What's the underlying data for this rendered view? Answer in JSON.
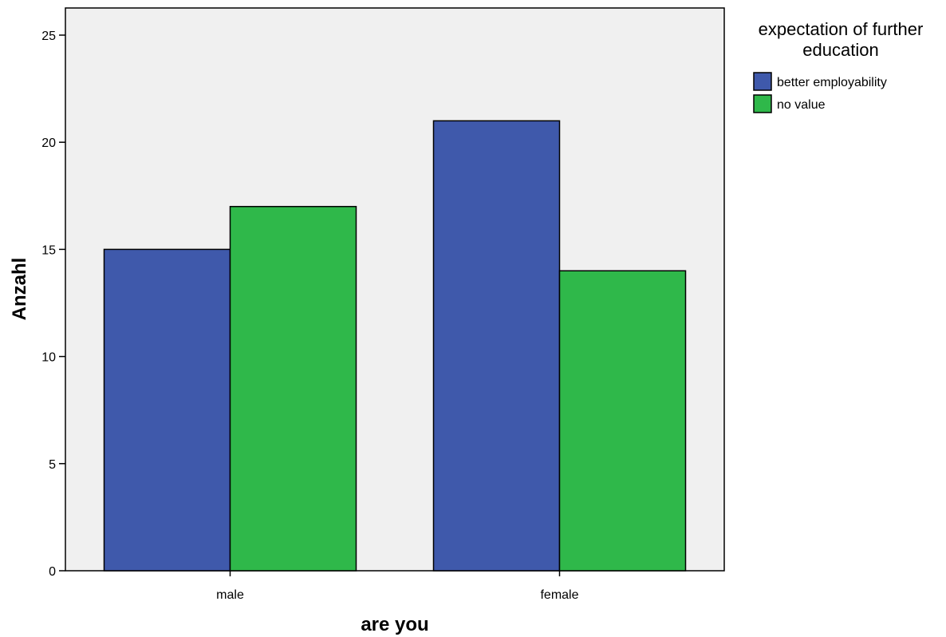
{
  "chart_data": {
    "type": "bar",
    "xlabel": "are you",
    "ylabel": "Anzahl",
    "categories": [
      "male",
      "female"
    ],
    "series": [
      {
        "name": "better employability",
        "values": [
          15,
          21
        ],
        "color": "#3f59ab"
      },
      {
        "name": "no value",
        "values": [
          17,
          14
        ],
        "color": "#2fb84a"
      }
    ],
    "ylim": [
      0,
      25
    ],
    "yticks": [
      0,
      5,
      10,
      15,
      20,
      25
    ],
    "legend": {
      "title_lines": [
        "expectation of further",
        "education"
      ],
      "placement": "right"
    },
    "grid": false,
    "plot_background": "#f0f0f0"
  }
}
